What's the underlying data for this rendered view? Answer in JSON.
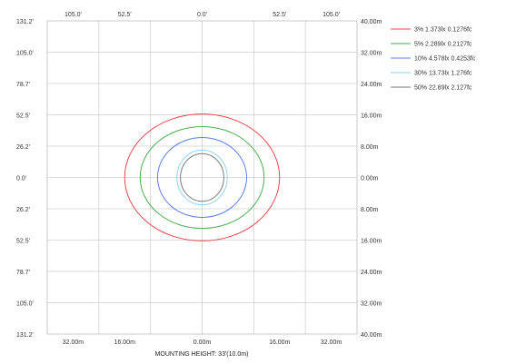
{
  "chart_data": {
    "type": "line",
    "title": "",
    "xlabel": "MOUNTING HEIGHT: 33'(10.0m)",
    "ylabel": "",
    "x_top_ticks": [
      "105.0'",
      "52.5'",
      "0.0'",
      "52.5'",
      "105.0'"
    ],
    "x_bottom_ticks": [
      "32.00m",
      "16.00m",
      "0.00m",
      "16.00m",
      "32.00m"
    ],
    "y_left_ticks": [
      "131.2'",
      "105.0'",
      "78.7'",
      "52.5'",
      "26.2'",
      "0.0'",
      "26.2'",
      "52.5'",
      "78.7'",
      "105.0'",
      "131.2'"
    ],
    "y_right_ticks": [
      "40.00m",
      "32.00m",
      "24.00m",
      "16.00m",
      "8.00m",
      "0.00m",
      "8.00m",
      "16.00m",
      "24.00m",
      "32.00m",
      "40.00m"
    ],
    "xlim": [
      -40,
      40
    ],
    "ylim": [
      -40,
      40
    ],
    "grid": true,
    "legend_position": "top-right",
    "series": [
      {
        "name": "3% 1.373lx 0.1276fc",
        "color": "#e8474b",
        "rx": 20.0,
        "ry": 16.2
      },
      {
        "name": "5% 2.289lx 0.2127fc",
        "color": "#4caf50",
        "rx": 16.0,
        "ry": 13.0
      },
      {
        "name": "10% 4.578lx 0.4253fc",
        "color": "#5b7fe3",
        "rx": 11.5,
        "ry": 10.2
      },
      {
        "name": "30% 13.73lx 1.276fc",
        "color": "#8fd3f4",
        "rx": 6.5,
        "ry": 7.0
      },
      {
        "name": "50% 22.89lx 2.127fc",
        "color": "#7a7a7a",
        "rx": 5.6,
        "ry": 6.1
      }
    ]
  }
}
